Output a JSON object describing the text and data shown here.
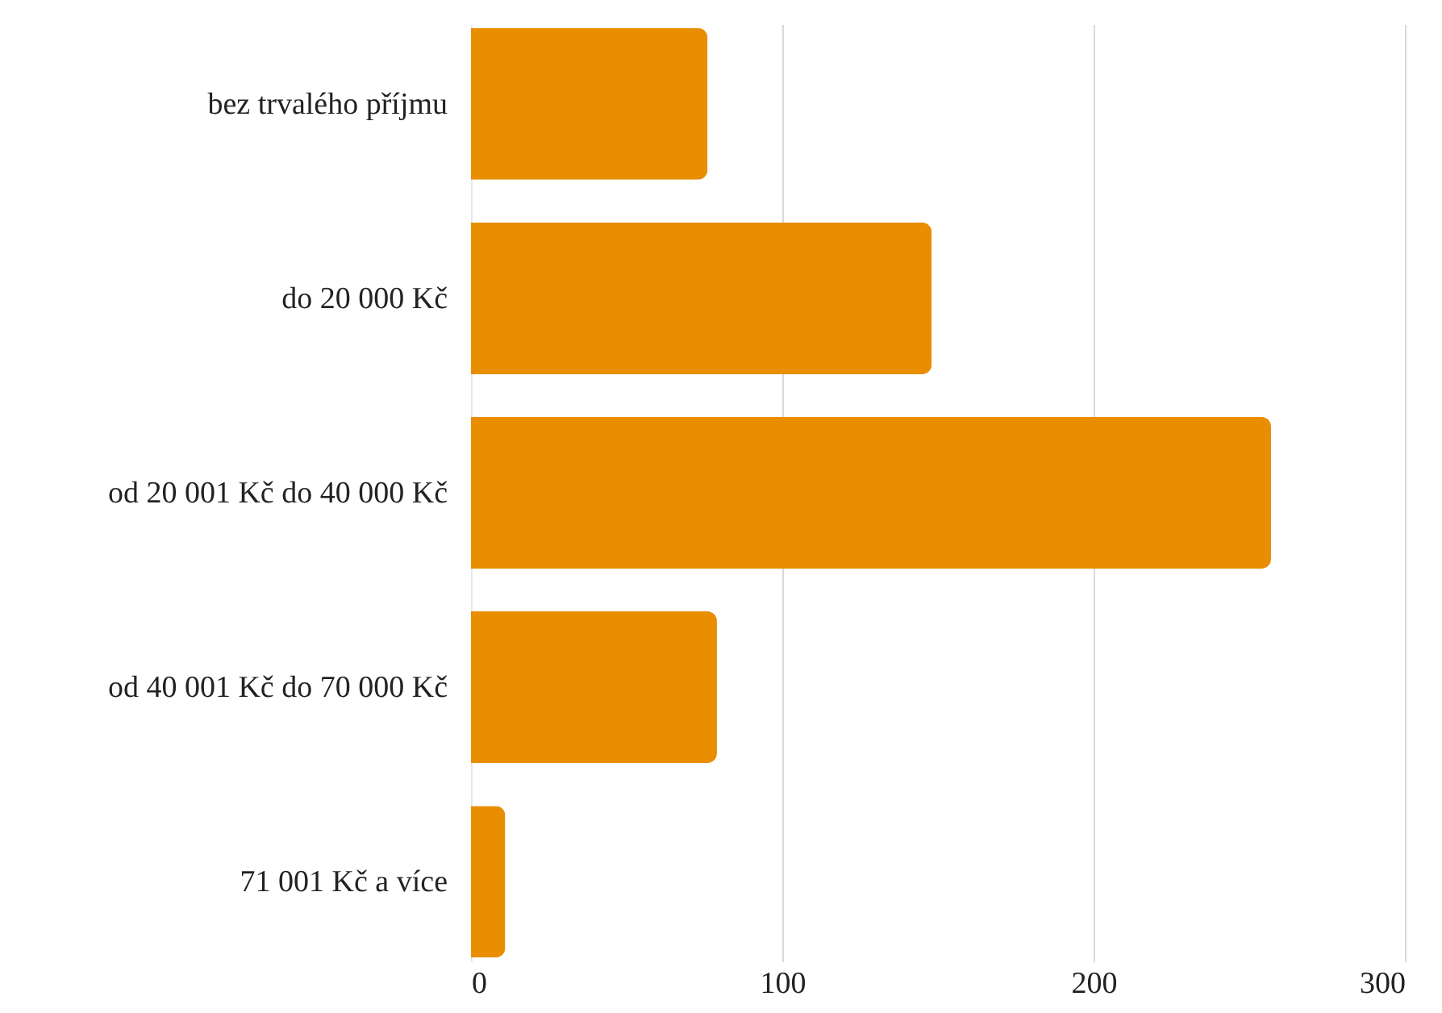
{
  "chart_data": {
    "type": "bar",
    "orientation": "horizontal",
    "categories": [
      "bez trvalého příjmu",
      "do 20 000 Kč",
      "od 20 001 Kč do 40 000 Kč",
      "od 40 001 Kč do 70 000 Kč",
      "71 001 Kč a více"
    ],
    "values": [
      76,
      148,
      257,
      79,
      11
    ],
    "color": "#e88e00",
    "xlim": [
      0,
      300
    ],
    "xticks": [
      0,
      100,
      200,
      300
    ],
    "grid": "x"
  }
}
